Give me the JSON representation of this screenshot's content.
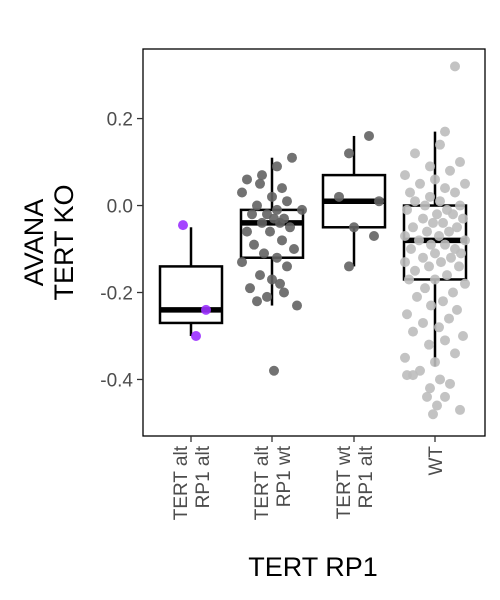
{
  "chart_data": {
    "type": "box",
    "xlabel": "TERT RP1",
    "ylabel_lines": [
      "AVANA",
      "TERT KO"
    ],
    "ylim": [
      -0.53,
      0.36
    ],
    "yticks": [
      0.2,
      0.0,
      -0.2,
      -0.4
    ],
    "ytick_labels": [
      "0.2",
      "0.0",
      "-0.2",
      "-0.4"
    ],
    "grid": false,
    "legend": "none",
    "categories": [
      {
        "label_lines": [
          "TERT alt",
          "RP1 alt"
        ],
        "color": "#9b30ff"
      },
      {
        "label_lines": [
          "TERT alt",
          "RP1 wt"
        ],
        "color": "#636363"
      },
      {
        "label_lines": [
          "TERT wt",
          "RP1 alt"
        ],
        "color": "#636363"
      },
      {
        "label_lines": [
          "WT"
        ],
        "color": "#bdbdbd"
      }
    ],
    "boxes": [
      {
        "q1": -0.27,
        "median": -0.24,
        "q3": -0.14,
        "whisker_low": -0.3,
        "whisker_high": -0.05
      },
      {
        "q1": -0.12,
        "median": -0.04,
        "q3": -0.01,
        "whisker_low": -0.23,
        "whisker_high": 0.11
      },
      {
        "q1": -0.05,
        "median": 0.01,
        "q3": 0.07,
        "whisker_low": -0.14,
        "whisker_high": 0.16
      },
      {
        "q1": -0.17,
        "median": -0.08,
        "q3": 0.0,
        "whisker_low": -0.37,
        "whisker_high": 0.17
      }
    ],
    "points": [
      [
        {
          "x": -0.08,
          "y": -0.045
        },
        {
          "x": 0.15,
          "y": -0.24
        },
        {
          "x": 0.05,
          "y": -0.3
        }
      ],
      [
        {
          "x": -0.25,
          "y": 0.06
        },
        {
          "x": -0.1,
          "y": 0.07
        },
        {
          "x": 0.2,
          "y": 0.11
        },
        {
          "x": 0.05,
          "y": 0.09
        },
        {
          "x": -0.3,
          "y": 0.03
        },
        {
          "x": 0.1,
          "y": 0.04
        },
        {
          "x": 0.0,
          "y": 0.02
        },
        {
          "x": -0.15,
          "y": 0.0
        },
        {
          "x": 0.15,
          "y": 0.01
        },
        {
          "x": -0.2,
          "y": -0.02
        },
        {
          "x": 0.05,
          "y": -0.01
        },
        {
          "x": 0.12,
          "y": -0.03
        },
        {
          "x": -0.05,
          "y": -0.02
        },
        {
          "x": 0.02,
          "y": -0.03
        },
        {
          "x": -0.1,
          "y": -0.04
        },
        {
          "x": 0.08,
          "y": -0.04
        },
        {
          "x": -0.25,
          "y": -0.06
        },
        {
          "x": 0.18,
          "y": -0.05
        },
        {
          "x": -0.02,
          "y": -0.06
        },
        {
          "x": 0.1,
          "y": -0.08
        },
        {
          "x": -0.18,
          "y": -0.09
        },
        {
          "x": 0.22,
          "y": -0.1
        },
        {
          "x": -0.08,
          "y": -0.11
        },
        {
          "x": 0.05,
          "y": -0.12
        },
        {
          "x": -0.3,
          "y": -0.13
        },
        {
          "x": 0.15,
          "y": -0.14
        },
        {
          "x": -0.12,
          "y": -0.16
        },
        {
          "x": 0.0,
          "y": -0.17
        },
        {
          "x": -0.22,
          "y": -0.19
        },
        {
          "x": 0.12,
          "y": -0.2
        },
        {
          "x": -0.05,
          "y": -0.21
        },
        {
          "x": 0.25,
          "y": -0.23
        },
        {
          "x": -0.15,
          "y": -0.22
        },
        {
          "x": 0.08,
          "y": -0.18
        },
        {
          "x": 0.3,
          "y": -0.01
        },
        {
          "x": -0.12,
          "y": 0.05
        },
        {
          "x": 0.02,
          "y": -0.38
        }
      ],
      [
        {
          "x": 0.15,
          "y": 0.16
        },
        {
          "x": -0.05,
          "y": 0.12
        },
        {
          "x": -0.15,
          "y": 0.02
        },
        {
          "x": 0.25,
          "y": 0.01
        },
        {
          "x": 0.0,
          "y": -0.05
        },
        {
          "x": 0.2,
          "y": -0.07
        },
        {
          "x": -0.05,
          "y": -0.14
        }
      ],
      [
        {
          "x": 0.2,
          "y": 0.32
        },
        {
          "x": 0.1,
          "y": 0.17
        },
        {
          "x": 0.05,
          "y": 0.14
        },
        {
          "x": -0.2,
          "y": 0.12
        },
        {
          "x": 0.25,
          "y": 0.1
        },
        {
          "x": -0.05,
          "y": 0.09
        },
        {
          "x": 0.15,
          "y": 0.08
        },
        {
          "x": -0.3,
          "y": 0.07
        },
        {
          "x": 0.0,
          "y": 0.06
        },
        {
          "x": 0.3,
          "y": 0.05
        },
        {
          "x": -0.15,
          "y": 0.05
        },
        {
          "x": 0.1,
          "y": 0.04
        },
        {
          "x": -0.25,
          "y": 0.03
        },
        {
          "x": 0.2,
          "y": 0.03
        },
        {
          "x": -0.05,
          "y": 0.02
        },
        {
          "x": 0.05,
          "y": 0.01
        },
        {
          "x": -0.2,
          "y": 0.01
        },
        {
          "x": 0.25,
          "y": 0.0
        },
        {
          "x": -0.1,
          "y": 0.0
        },
        {
          "x": 0.12,
          "y": -0.01
        },
        {
          "x": -0.28,
          "y": -0.01
        },
        {
          "x": 0.02,
          "y": -0.02
        },
        {
          "x": 0.18,
          "y": -0.02
        },
        {
          "x": -0.12,
          "y": -0.03
        },
        {
          "x": 0.28,
          "y": -0.03
        },
        {
          "x": -0.02,
          "y": -0.04
        },
        {
          "x": 0.08,
          "y": -0.04
        },
        {
          "x": -0.22,
          "y": -0.05
        },
        {
          "x": 0.22,
          "y": -0.05
        },
        {
          "x": -0.08,
          "y": -0.06
        },
        {
          "x": 0.14,
          "y": -0.06
        },
        {
          "x": -0.3,
          "y": -0.07
        },
        {
          "x": 0.04,
          "y": -0.07
        },
        {
          "x": 0.3,
          "y": -0.08
        },
        {
          "x": -0.16,
          "y": -0.08
        },
        {
          "x": 0.1,
          "y": -0.09
        },
        {
          "x": -0.04,
          "y": -0.09
        },
        {
          "x": 0.2,
          "y": -0.1
        },
        {
          "x": -0.24,
          "y": -0.1
        },
        {
          "x": 0.0,
          "y": -0.11
        },
        {
          "x": 0.26,
          "y": -0.11
        },
        {
          "x": -0.12,
          "y": -0.12
        },
        {
          "x": 0.16,
          "y": -0.12
        },
        {
          "x": -0.3,
          "y": -0.13
        },
        {
          "x": 0.06,
          "y": -0.13
        },
        {
          "x": -0.06,
          "y": -0.14
        },
        {
          "x": 0.24,
          "y": -0.14
        },
        {
          "x": -0.2,
          "y": -0.15
        },
        {
          "x": 0.12,
          "y": -0.16
        },
        {
          "x": 0.0,
          "y": -0.17
        },
        {
          "x": -0.26,
          "y": -0.17
        },
        {
          "x": 0.3,
          "y": -0.18
        },
        {
          "x": -0.1,
          "y": -0.19
        },
        {
          "x": 0.18,
          "y": -0.2
        },
        {
          "x": -0.18,
          "y": -0.21
        },
        {
          "x": 0.08,
          "y": -0.22
        },
        {
          "x": -0.04,
          "y": -0.23
        },
        {
          "x": 0.22,
          "y": -0.24
        },
        {
          "x": -0.28,
          "y": -0.25
        },
        {
          "x": 0.14,
          "y": -0.26
        },
        {
          "x": -0.12,
          "y": -0.27
        },
        {
          "x": 0.04,
          "y": -0.28
        },
        {
          "x": -0.22,
          "y": -0.29
        },
        {
          "x": 0.28,
          "y": -0.3
        },
        {
          "x": 0.1,
          "y": -0.31
        },
        {
          "x": -0.06,
          "y": -0.32
        },
        {
          "x": 0.2,
          "y": -0.34
        },
        {
          "x": -0.3,
          "y": -0.35
        },
        {
          "x": 0.0,
          "y": -0.36
        },
        {
          "x": -0.15,
          "y": -0.38
        },
        {
          "x": -0.28,
          "y": -0.39
        },
        {
          "x": -0.22,
          "y": -0.39
        },
        {
          "x": 0.05,
          "y": -0.4
        },
        {
          "x": 0.15,
          "y": -0.41
        },
        {
          "x": -0.05,
          "y": -0.42
        },
        {
          "x": -0.08,
          "y": -0.44
        },
        {
          "x": 0.1,
          "y": -0.44
        },
        {
          "x": 0.02,
          "y": -0.46
        },
        {
          "x": 0.25,
          "y": -0.47
        },
        {
          "x": -0.02,
          "y": -0.48
        }
      ]
    ]
  }
}
